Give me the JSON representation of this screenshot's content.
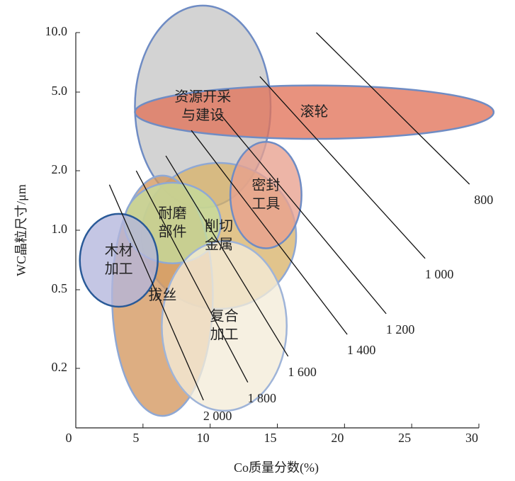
{
  "chart_data": {
    "type": "region",
    "x_label": "Co质量分数(%)",
    "y_label": "WC晶粒尺寸/μm",
    "xlim": [
      0,
      30
    ],
    "xticks": [
      0,
      5,
      10,
      15,
      20,
      25,
      30
    ],
    "ylim": [
      0.1,
      10
    ],
    "ylog": true,
    "yticks": [
      0.2,
      0.5,
      {
        "value": 1,
        "label": "1.0"
      },
      {
        "value": 2,
        "label": "2.0"
      },
      {
        "value": 5,
        "label": "5.0"
      },
      {
        "value": 10,
        "label": "10.0"
      }
    ],
    "regions": [
      {
        "label": [
          "资源开采",
          "与建设"
        ],
        "color": "#c6c6c6",
        "edge": "#6f8cc4",
        "xrange": [
          4.4,
          14.5
        ],
        "yrange": [
          1.3,
          13.7
        ]
      },
      {
        "label": [
          "滚轮"
        ],
        "color": "#e2735a",
        "edge": "#6f8cc4",
        "xrange": [
          4.4,
          31.1
        ],
        "yrange": [
          2.9,
          5.4
        ]
      },
      {
        "label": [
          "削切",
          "金属"
        ],
        "color": "#d9b46c",
        "edge": "#8fa8d4",
        "xrange": [
          4.9,
          16.4
        ],
        "yrange": [
          0.4,
          2.19
        ]
      },
      {
        "label": [
          "拔丝"
        ],
        "color": "#d4975f",
        "edge": "#8fa8d4",
        "xrange": [
          2.7,
          10.2
        ],
        "yrange": [
          0.115,
          1.89
        ]
      },
      {
        "label": [
          "耐磨",
          "部件"
        ],
        "color": "#c4dc9c",
        "edge": "#8fa8d4",
        "xrange": [
          3.6,
          10.8
        ],
        "yrange": [
          0.68,
          1.74
        ]
      },
      {
        "label": [
          "木材",
          "加工"
        ],
        "color": "#b3b6dc",
        "edge": "#2a5a98",
        "xrange": [
          0.3,
          6.1
        ],
        "yrange": [
          0.41,
          1.21
        ]
      },
      {
        "label": [
          "复合",
          "加工"
        ],
        "color": "#f4ecd8",
        "edge": "#9fb4d8",
        "xrange": [
          6.4,
          15.7
        ],
        "yrange": [
          0.122,
          0.88
        ]
      },
      {
        "label": [
          "密封",
          "工具"
        ],
        "color": "#e8a08e",
        "edge": "#6f8cc4",
        "xrange": [
          11.5,
          16.8
        ],
        "yrange": [
          0.81,
          2.8
        ]
      }
    ],
    "hardness_lines": [
      {
        "hardness": {
          "value": 800,
          "label": "800"
        },
        "x": [
          17.9,
          29.3
        ],
        "y": [
          10,
          1.71
        ]
      },
      {
        "hardness": {
          "value": 1000,
          "label": "1 000"
        },
        "x": [
          13.7,
          26.0
        ],
        "y": [
          5.99,
          0.72
        ]
      },
      {
        "hardness": {
          "value": 1200,
          "label": "1 200"
        },
        "x": [
          10.7,
          23.1
        ],
        "y": [
          3.9,
          0.378
        ]
      },
      {
        "hardness": {
          "value": 1400,
          "label": "1 400"
        },
        "x": [
          8.6,
          20.2
        ],
        "y": [
          3.2,
          0.297
        ]
      },
      {
        "hardness": {
          "value": 1600,
          "label": "1 600"
        },
        "x": [
          6.7,
          15.8
        ],
        "y": [
          2.38,
          0.23
        ]
      },
      {
        "hardness": {
          "value": 1800,
          "label": "1 800"
        },
        "x": [
          4.5,
          12.8
        ],
        "y": [
          2.0,
          0.17
        ]
      },
      {
        "hardness": {
          "value": 2000,
          "label": "2 000"
        },
        "x": [
          2.5,
          9.5
        ],
        "y": [
          1.7,
          0.138
        ]
      }
    ]
  }
}
